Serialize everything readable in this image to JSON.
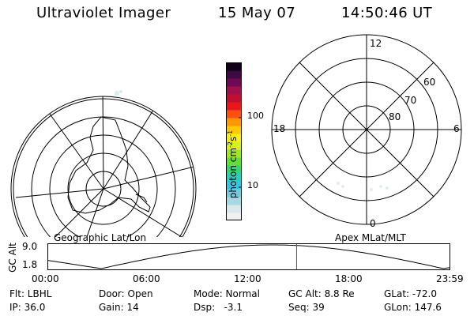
{
  "header": {
    "instrument": "Ultraviolet Imager",
    "date": "15 May 07",
    "time": "14:50:46 UT"
  },
  "left_panel": {
    "caption": "Geographic Lat/Lon"
  },
  "right_panel": {
    "caption": "Apex MLat/MLT",
    "mlt_labels": {
      "top": "12",
      "left": "18",
      "right": "6",
      "bottom": "0"
    },
    "mlat_labels": [
      "60",
      "70",
      "80"
    ]
  },
  "colorbar": {
    "label": "photon cm",
    "label_sup1": "-2",
    "label_mid": "s",
    "label_sup2": "-1",
    "ticks": [
      "100",
      "10"
    ],
    "scale": "log",
    "colors": [
      "#f0f0f0",
      "#d8e8ec",
      "#a8d8e0",
      "#70cce0",
      "#30c8e8",
      "#20d0c0",
      "#30d870",
      "#60e030",
      "#a0e820",
      "#d8f020",
      "#f8f010",
      "#ffc800",
      "#ff9800",
      "#ff5010",
      "#e81818",
      "#c01030",
      "#a0104c",
      "#700858",
      "#400840",
      "#100018"
    ]
  },
  "timeline": {
    "ylabel": "GC Alt",
    "y_ticks": [
      "9.0",
      "1.8"
    ],
    "x_ticks": [
      "00:00",
      "06:00",
      "12:00",
      "18:00",
      "23:59"
    ],
    "current_time_hours": 14.846,
    "marker_color": "#e02020"
  },
  "status": {
    "filter": "Flt: LBHL",
    "door": "Door: Open",
    "mode": "Mode: Normal",
    "gc_alt": "GC Alt: 8.8 Re",
    "glat": "GLat: -72.0",
    "ip": "IP: 36.0",
    "gain": "Gain: 14",
    "dsp": "Dsp:   -3.1",
    "seq": "Seq: 39",
    "glon": "GLon: 147.6"
  }
}
